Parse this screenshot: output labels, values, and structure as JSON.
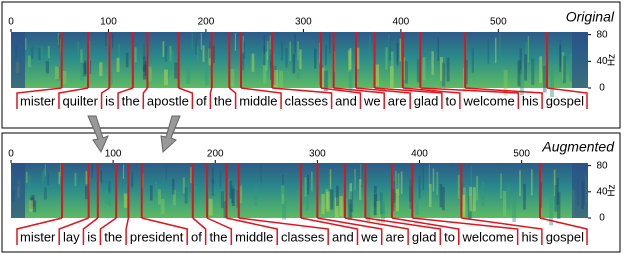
{
  "panels": [
    {
      "title": "Original",
      "xlim": [
        0,
        592
      ],
      "ylim": [
        0,
        84
      ],
      "xticks": [
        0,
        100,
        200,
        300,
        400,
        500
      ],
      "yticks": [
        0,
        40,
        80
      ],
      "ylabel": "Hz",
      "boundaries": [
        52,
        79,
        101,
        125,
        140,
        172,
        206,
        224,
        236,
        268,
        318,
        331,
        354,
        373,
        402,
        420,
        466,
        550
      ],
      "words": [
        {
          "text": "mister"
        },
        {
          "text": "quilter",
          "color": "#3a9a3a"
        },
        {
          "text": "is"
        },
        {
          "text": "the"
        },
        {
          "text": "apostle",
          "color": "#3a9a3a"
        },
        {
          "text": "of"
        },
        {
          "text": "the"
        },
        {
          "text": "middle"
        },
        {
          "text": "classes"
        },
        {
          "text": "and"
        },
        {
          "text": "we"
        },
        {
          "text": "are"
        },
        {
          "text": "glad"
        },
        {
          "text": "to"
        },
        {
          "text": "welcome"
        },
        {
          "text": "his"
        },
        {
          "text": "gospel"
        }
      ]
    },
    {
      "title": "Augmented",
      "xlim": [
        0,
        565
      ],
      "ylim": [
        0,
        84
      ],
      "xticks": [
        0,
        100,
        200,
        300,
        400,
        500
      ],
      "yticks": [
        0,
        40,
        80
      ],
      "ylabel": "Hz",
      "boundaries": [
        50,
        76,
        85,
        103,
        115,
        128,
        178,
        192,
        211,
        223,
        284,
        300,
        327,
        347,
        373,
        393,
        441,
        518
      ],
      "words": [
        {
          "text": "mister"
        },
        {
          "text": "lay",
          "color": "#3b7dd8"
        },
        {
          "text": "is"
        },
        {
          "text": "the"
        },
        {
          "text": "president",
          "color": "#3b7dd8"
        },
        {
          "text": "of"
        },
        {
          "text": "the"
        },
        {
          "text": "middle"
        },
        {
          "text": "classes"
        },
        {
          "text": "and"
        },
        {
          "text": "we"
        },
        {
          "text": "are"
        },
        {
          "text": "glad"
        },
        {
          "text": "to"
        },
        {
          "text": "welcome"
        },
        {
          "text": "his"
        },
        {
          "text": "gospel"
        }
      ]
    }
  ]
}
